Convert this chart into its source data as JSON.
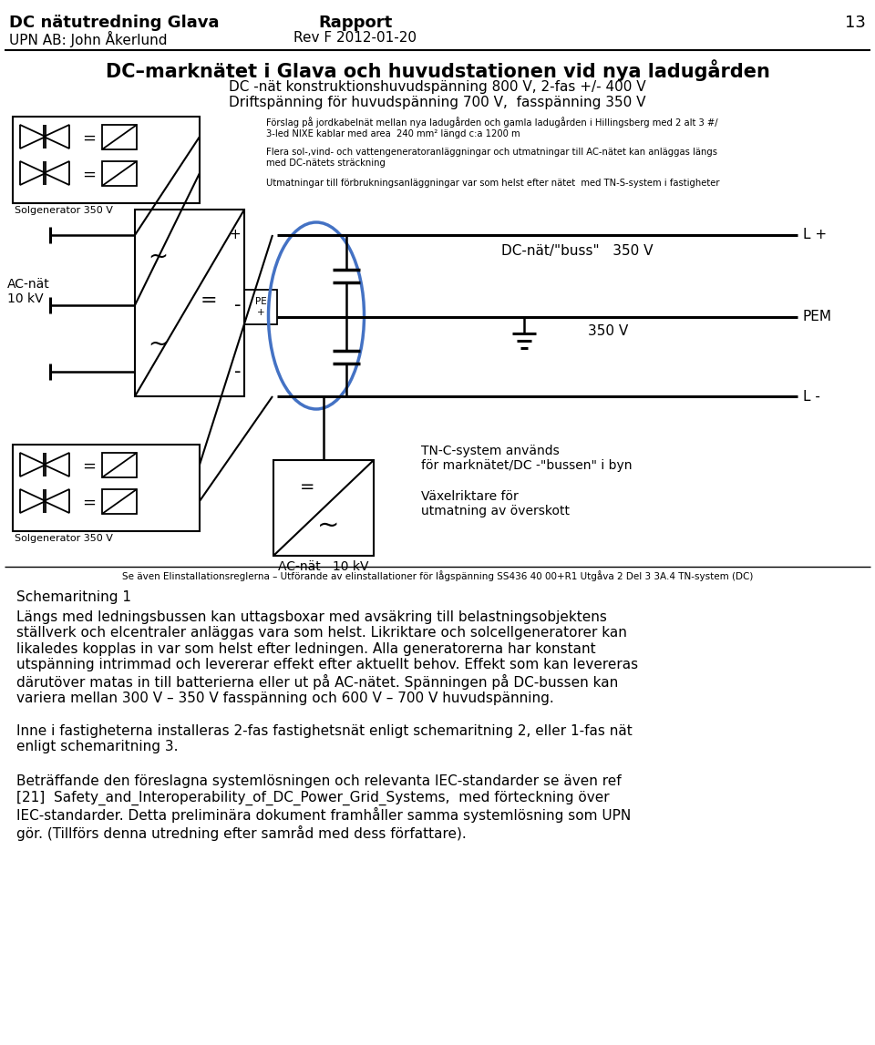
{
  "page_width": 9.6,
  "page_height": 11.47,
  "bg_color": "#ffffff",
  "header": {
    "left_line1": "DC nätutredning Glava",
    "left_line2": "UPN AB: John Åkerlund",
    "center_line1": "Rapport",
    "center_line2": "Rev F 2012-01-20",
    "right_page": "13"
  },
  "diagram_title_line1": "DC–marknätet i Glava och huvudstationen vid nya ladugården",
  "diagram_title_line2": "DC -nät konstruktionshuvudspänning 800 V, 2-fas +/- 400 V",
  "diagram_title_line3": "Driftspänning för huvudspänning 700 V,  fasspänning 350 V",
  "note1": "Förslag på jordkabelnät mellan nya ladugården och gamla ladugården i Hillingsberg med 2 alt 3 #/\n3-led NIXE kablar med area  240 mm² längd c:a 1200 m",
  "note2": "Flera sol-,vind- och vattengeneratoranläggningar och utmatningar till AC-nätet kan anläggas längs\nmed DC-nätets sträckning",
  "note3": "Utmatningar till förbrukningsanläggningar var som helst efter nätet  med TN-S-system i fastigheter",
  "label_lplus": "L +",
  "label_dcbus": "DC-nät/\"buss\"   350 V",
  "label_pem": "PEM",
  "label_350v": "350 V",
  "label_lminus": "L -",
  "label_tnc": "TN-C-system används\nför marknätet/DC -\"bussen\" i byn",
  "label_vaxel": "Växelriktare för\nutmatning av överskott",
  "label_acnat": "AC-nät\n10 kV",
  "label_acnat2": "AC-nät   10 kV",
  "label_solgen1": "Solgenerator 350 V",
  "label_solgen2": "Solgenerator 350 V",
  "label_pe_plus": "PE\n+",
  "footnote": "Se även Elinstallationsreglerna – Utförande av elinstallationer för lågspänning SS436 40 00+R1 Utgåva 2 Del 3 3A.4 TN-system (DC)",
  "para_caption": "Schemaritning 1",
  "para1": "Längs med ledningsbussen kan uttagsboxar med avsäkring till belastningsobjektens\nställverk och elcentraler anläggas vara som helst. Likriktare och solcellgeneratorer kan\nlikaledes kopplas in var som helst efter ledningen. Alla generatorerna har konstant\nutspänning intrimmad och levererar effekt efter aktuellt behov. Effekt som kan levereras\ndärutöver matas in till batterierna eller ut på AC-nätet. Spänningen på DC-bussen kan\nvariera mellan 300 V – 350 V fasspänning och 600 V – 700 V huvudspänning.",
  "para2": "Inne i fastigheterna installeras 2-fas fastighetsnät enligt schemaritning 2, eller 1-fas nät\nenligt schemaritning 3.",
  "para3": "Beträffande den föreslagna systemlösningen och relevanta IEC-standarder se även ref\n[21]  Safety_and_Interoperability_of_DC_Power_Grid_Systems,  med förteckning över\nIEC-standarder. Detta preliminära dokument framhåller samma systemlösning som UPN\ngör. (Tillförs denna utredning efter samråd med dess författare)."
}
